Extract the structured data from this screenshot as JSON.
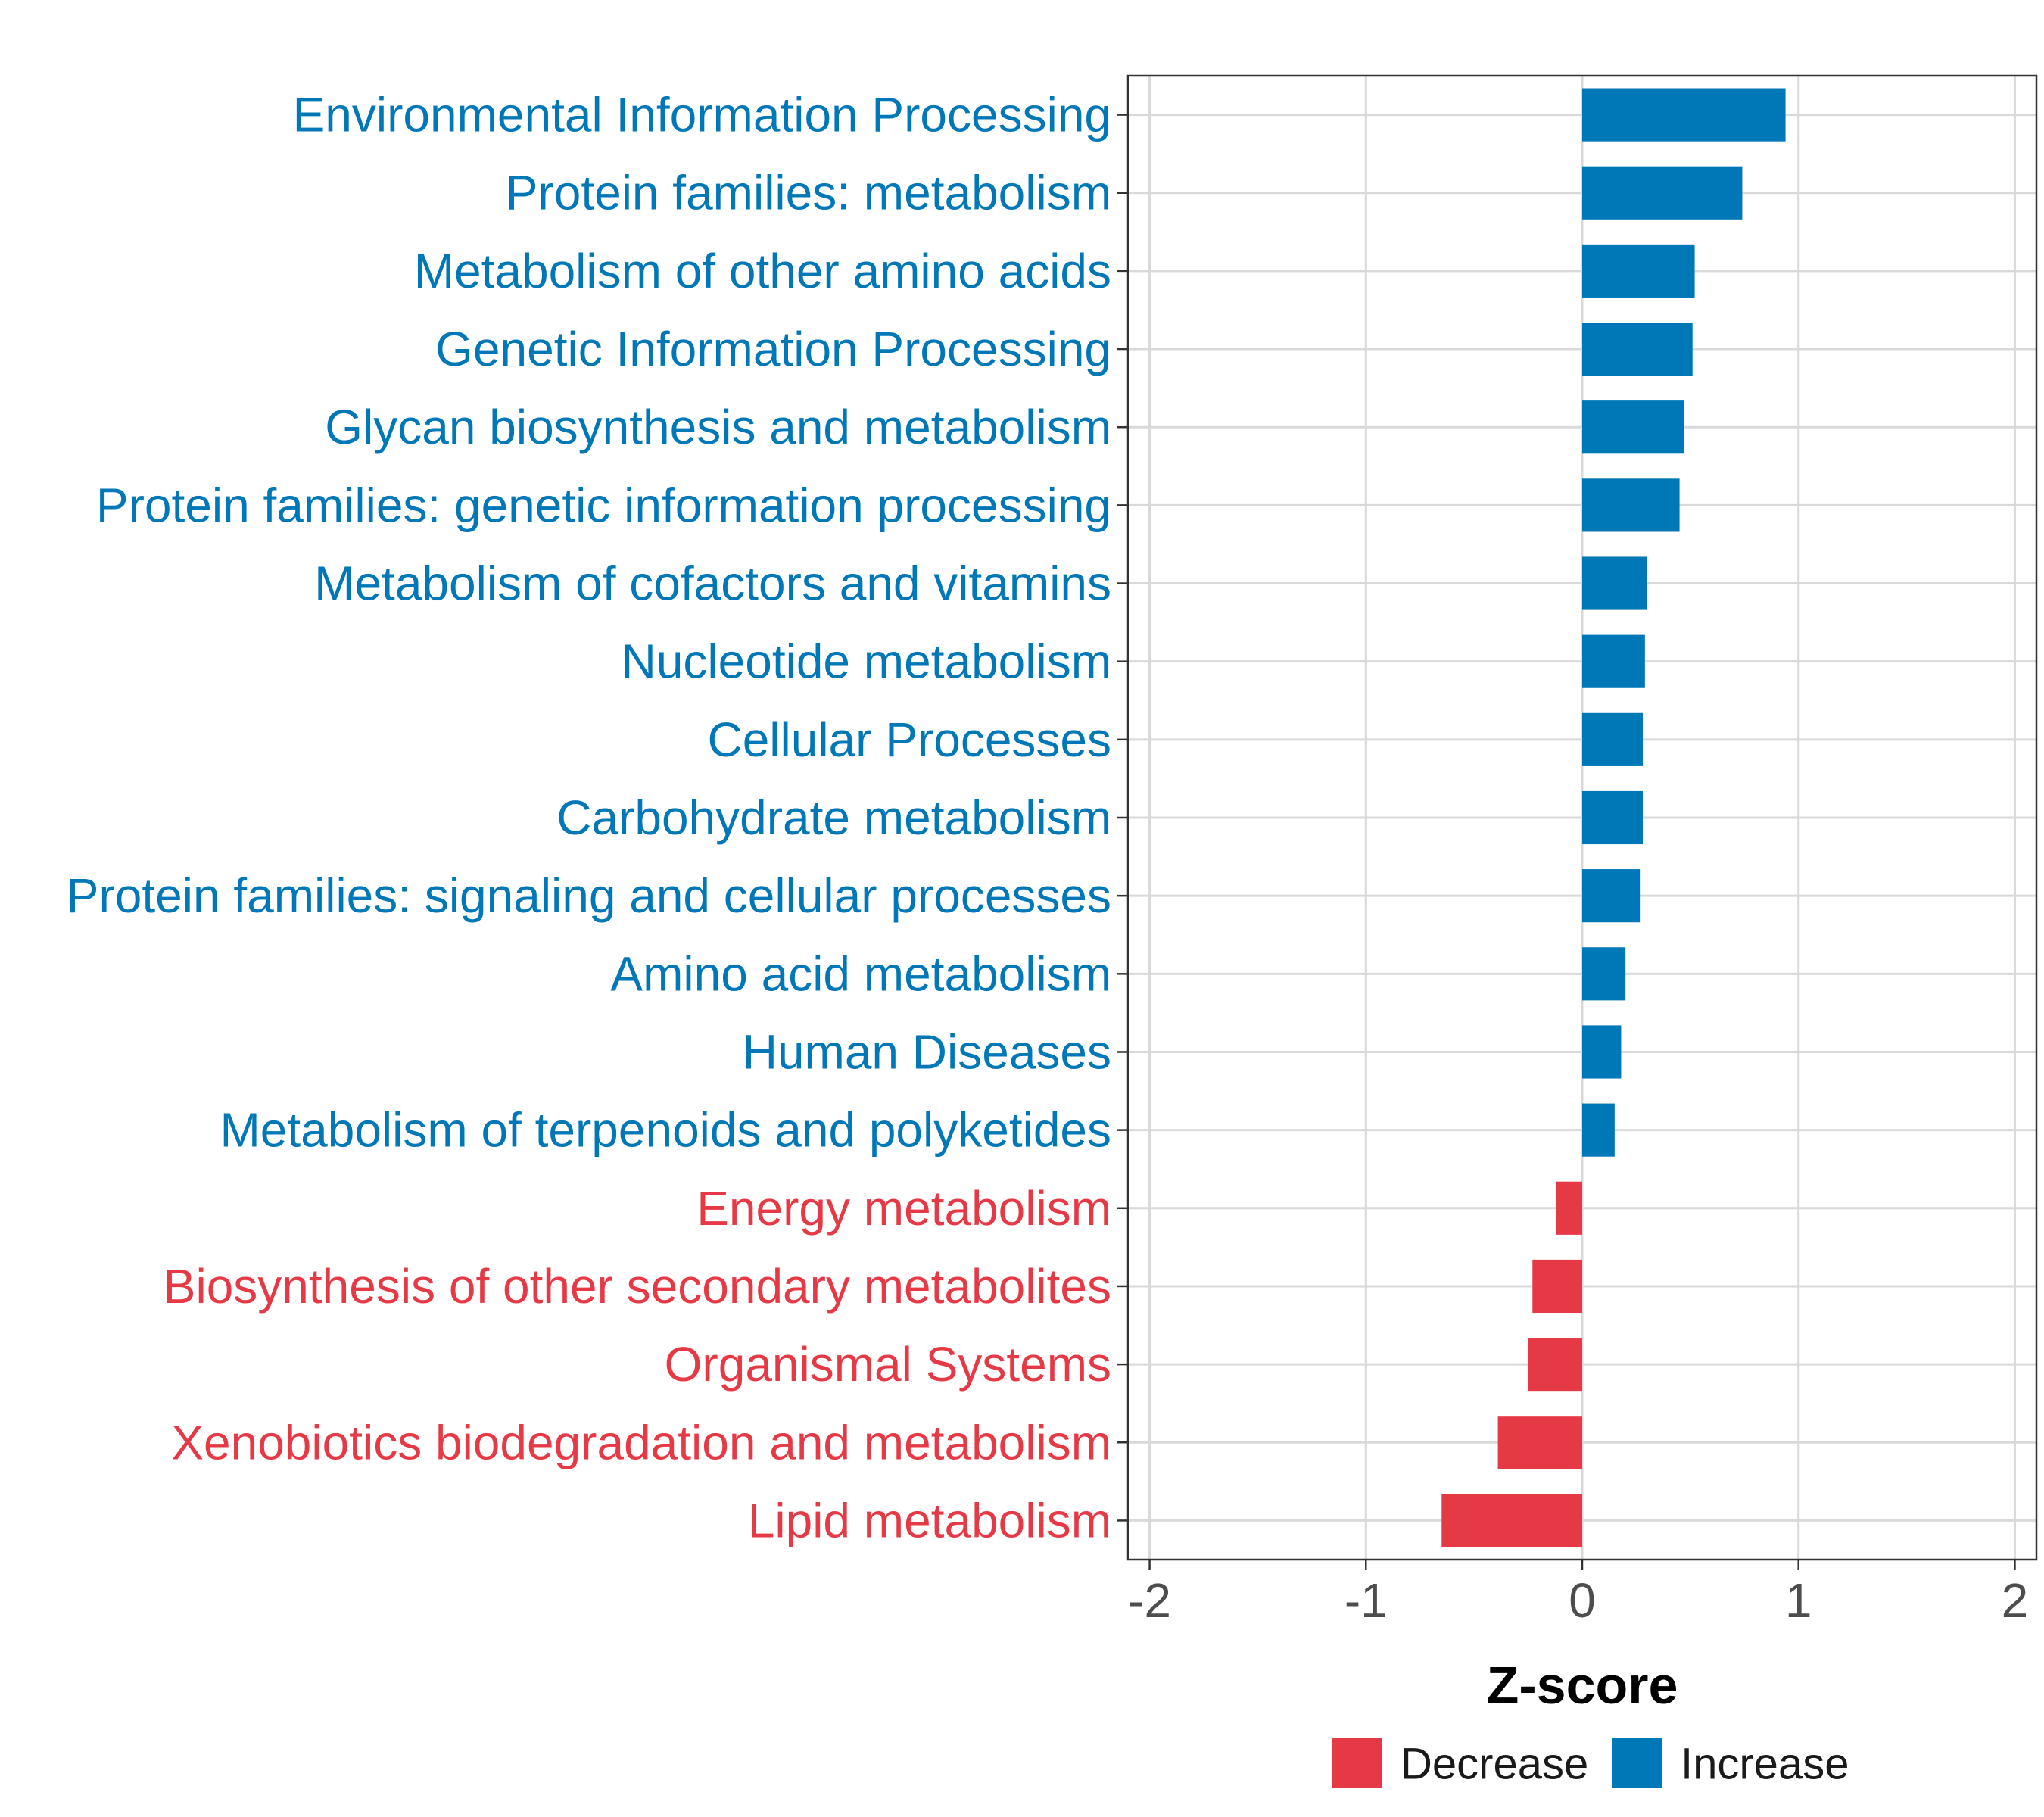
{
  "chart_data": {
    "type": "bar",
    "orientation": "horizontal",
    "xlabel": "Z-score",
    "ylabel": "",
    "xlim": [
      -2.1,
      2.1
    ],
    "xticks": [
      -2,
      -1,
      0,
      1,
      2
    ],
    "xtick_labels": [
      "-2",
      "-1",
      "0",
      "1",
      "2"
    ],
    "grid": true,
    "legend_position": "bottom",
    "colors": {
      "Decrease": "#E63946",
      "Increase": "#0077B6"
    },
    "legend": [
      {
        "name": "Decrease",
        "color": "#E63946"
      },
      {
        "name": "Increase",
        "color": "#0077B6"
      }
    ],
    "categories": [
      "Environmental Information Processing",
      "Protein families: metabolism",
      "Metabolism of other amino acids",
      "Genetic Information Processing",
      "Glycan biosynthesis and metabolism",
      "Protein families: genetic information processing",
      "Metabolism of cofactors and vitamins",
      "Nucleotide metabolism",
      "Cellular Processes",
      "Carbohydrate metabolism",
      "Protein families: signaling and cellular processes",
      "Amino acid metabolism",
      "Human Diseases",
      "Metabolism of terpenoids and polyketides",
      "Energy metabolism",
      "Biosynthesis of other secondary metabolites",
      "Organismal Systems",
      "Xenobiotics biodegradation and metabolism",
      "Lipid metabolism"
    ],
    "values": [
      0.94,
      0.74,
      0.52,
      0.51,
      0.47,
      0.45,
      0.3,
      0.29,
      0.28,
      0.28,
      0.27,
      0.2,
      0.18,
      0.15,
      -0.12,
      -0.23,
      -0.25,
      -0.39,
      -0.65
    ],
    "groups": [
      "Increase",
      "Increase",
      "Increase",
      "Increase",
      "Increase",
      "Increase",
      "Increase",
      "Increase",
      "Increase",
      "Increase",
      "Increase",
      "Increase",
      "Increase",
      "Increase",
      "Decrease",
      "Decrease",
      "Decrease",
      "Decrease",
      "Decrease"
    ]
  }
}
